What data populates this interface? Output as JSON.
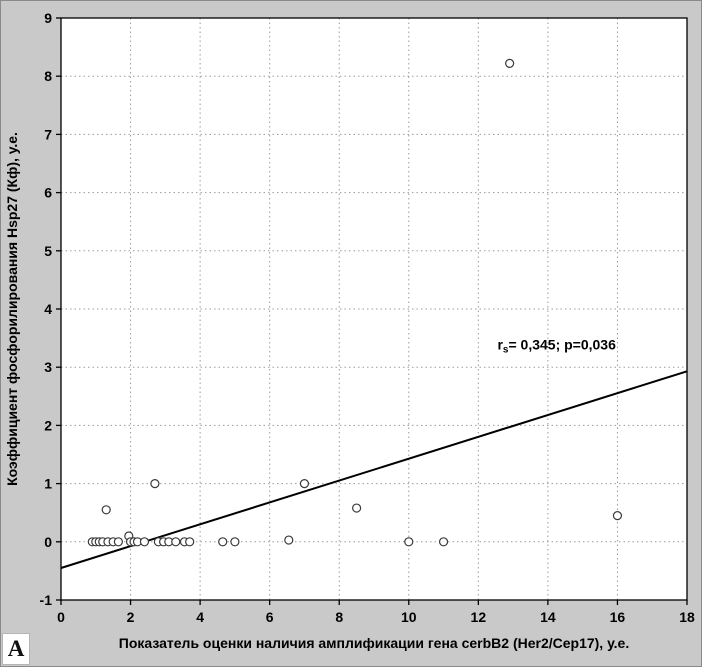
{
  "corner_label": "А",
  "chart_data": {
    "type": "scatter",
    "title": "",
    "xlabel": "Показатель оценки наличия амплификации гена cerbB2 (Her2/Cep17), у.е.",
    "ylabel": "Коэффициент фосфорилирования Hsp27 (Кф), у.е.",
    "xlim": [
      0,
      18
    ],
    "ylim": [
      -1,
      9
    ],
    "xticks": [
      0,
      2,
      4,
      6,
      8,
      10,
      12,
      14,
      16,
      18
    ],
    "yticks": [
      -1,
      0,
      1,
      2,
      3,
      4,
      5,
      6,
      7,
      8,
      9
    ],
    "grid": "dotted",
    "legend": "none",
    "annotation": {
      "prefix": "r",
      "subscript": "s",
      "text": "= 0,345; p=0,036",
      "x": 12.55,
      "y": 3.3
    },
    "trend_line": {
      "x1": 0,
      "y1": -0.45,
      "x2": 18,
      "y2": 2.93
    },
    "points": [
      [
        0.9,
        0
      ],
      [
        1.0,
        0
      ],
      [
        1.1,
        0
      ],
      [
        1.2,
        0
      ],
      [
        1.3,
        0.55
      ],
      [
        1.35,
        0
      ],
      [
        1.5,
        0
      ],
      [
        1.65,
        0
      ],
      [
        1.95,
        0.1
      ],
      [
        2.0,
        0
      ],
      [
        2.1,
        0
      ],
      [
        2.2,
        0
      ],
      [
        2.4,
        0
      ],
      [
        2.7,
        1.0
      ],
      [
        2.8,
        0
      ],
      [
        2.95,
        0
      ],
      [
        3.1,
        0
      ],
      [
        3.3,
        0
      ],
      [
        3.55,
        0
      ],
      [
        3.7,
        0
      ],
      [
        4.65,
        0
      ],
      [
        5.0,
        0
      ],
      [
        6.55,
        0.03
      ],
      [
        7.0,
        1.0
      ],
      [
        8.5,
        0.58
      ],
      [
        10.0,
        0
      ],
      [
        11.0,
        0
      ],
      [
        12.9,
        8.22
      ],
      [
        16.0,
        0.45
      ]
    ]
  }
}
